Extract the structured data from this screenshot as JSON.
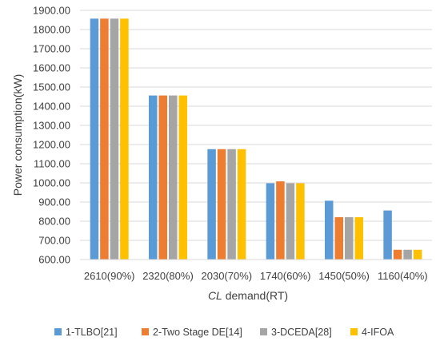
{
  "chart_data": {
    "type": "bar",
    "categories": [
      "2610(90%)",
      "2320(80%)",
      "2030(70%)",
      "1740(60%)",
      "1450(50%)",
      "1160(40%)"
    ],
    "series": [
      {
        "name": "1-TLBO[21]",
        "color": "#5b9bd5",
        "values": [
          1857,
          1456,
          1176,
          998,
          907,
          856
        ]
      },
      {
        "name": "2-Two Stage DE[14]",
        "color": "#ed7d31",
        "values": [
          1857,
          1456,
          1176,
          1008,
          821,
          651
        ]
      },
      {
        "name": "3-DCEDA[28]",
        "color": "#a5a5a5",
        "values": [
          1857,
          1456,
          1176,
          998,
          821,
          651
        ]
      },
      {
        "name": "4-IFOA",
        "color": "#ffc000",
        "values": [
          1857,
          1456,
          1176,
          998,
          821,
          651
        ]
      }
    ],
    "ylim": [
      600,
      1900
    ],
    "yticks": [
      "600.00",
      "700.00",
      "800.00",
      "900.00",
      "1000.00",
      "1100.00",
      "1200.00",
      "1300.00",
      "1400.00",
      "1500.00",
      "1600.00",
      "1700.00",
      "1800.00",
      "1900.00"
    ],
    "ylabel": "Power consumption(kW)",
    "xlabel_italic": "CL",
    "xlabel_rest": " demand(RT)",
    "grid": true,
    "legend_position": "bottom"
  }
}
